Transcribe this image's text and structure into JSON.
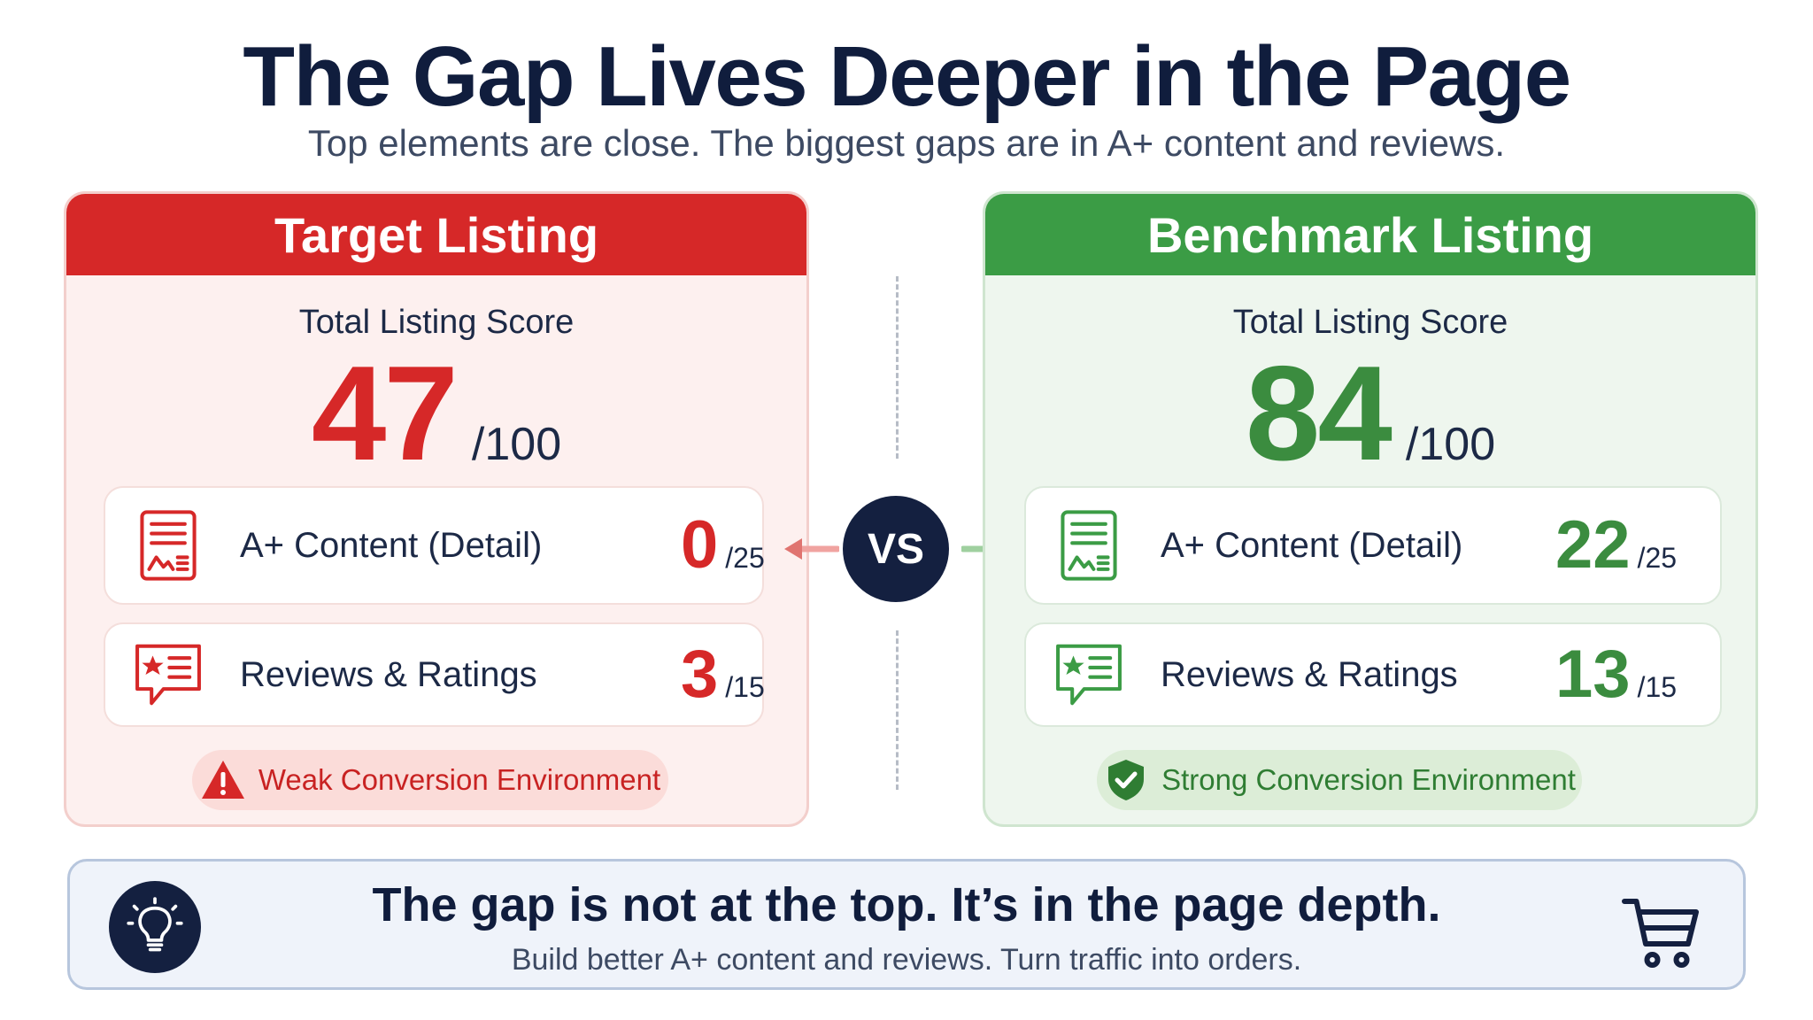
{
  "header": {
    "title": "The Gap Lives Deeper in the Page",
    "subtitle": "Top elements are close. The biggest gaps are in A+ content and reviews."
  },
  "target": {
    "title": "Target Listing",
    "total_label": "Total Listing Score",
    "total_score": "47",
    "total_max": "/100",
    "metrics": [
      {
        "label": "A+ Content (Detail)",
        "value": "0",
        "max": "/25",
        "icon": "document-image-icon"
      },
      {
        "label": "Reviews & Ratings",
        "value": "3",
        "max": "/15",
        "icon": "review-bubble-icon"
      }
    ],
    "status": {
      "text": "Weak Conversion Environment",
      "icon": "warning-icon"
    },
    "color": "#d62828"
  },
  "benchmark": {
    "title": "Benchmark Listing",
    "total_label": "Total Listing Score",
    "total_score": "84",
    "total_max": "/100",
    "metrics": [
      {
        "label": "A+ Content (Detail)",
        "value": "22",
        "max": "/25",
        "icon": "document-image-icon"
      },
      {
        "label": "Reviews & Ratings",
        "value": "13",
        "max": "/15",
        "icon": "review-bubble-icon"
      }
    ],
    "status": {
      "text": "Strong Conversion Environment",
      "icon": "shield-check-icon"
    },
    "color": "#3b9c45"
  },
  "versus": {
    "label": "VS"
  },
  "footer": {
    "headline": "The gap is not at the top. It’s in the page depth.",
    "subtext": "Build better A+ content and reviews. Turn traffic into orders.",
    "left_icon": "lightbulb-icon",
    "right_icon": "shopping-cart-icon"
  }
}
